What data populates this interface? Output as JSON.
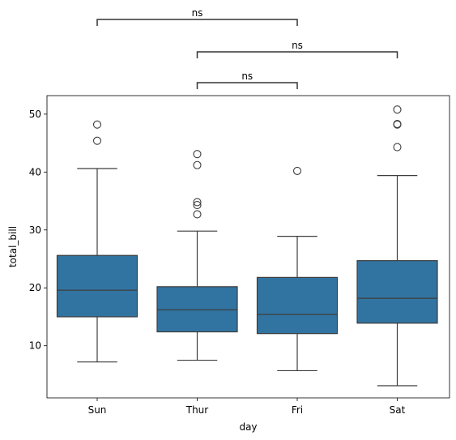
{
  "chart_data": {
    "type": "box",
    "title": "",
    "xlabel": "day",
    "ylabel": "total_bill",
    "categories": [
      "Sun",
      "Thur",
      "Fri",
      "Sat"
    ],
    "ylim": [
      1.0,
      53.2
    ],
    "yticks": [
      10,
      20,
      30,
      40,
      50
    ],
    "grid": false,
    "box_color": "#3274a1",
    "line_color": "#3d3d3d",
    "boxes": [
      {
        "category": "Sun",
        "whisker_low": 7.2,
        "q1": 15.0,
        "median": 19.6,
        "q3": 25.6,
        "whisker_high": 40.6,
        "outliers": [
          48.2,
          45.4
        ]
      },
      {
        "category": "Thur",
        "whisker_low": 7.5,
        "q1": 12.4,
        "median": 16.2,
        "q3": 20.2,
        "whisker_high": 29.8,
        "outliers": [
          43.1,
          41.2,
          34.8,
          34.3,
          32.7
        ]
      },
      {
        "category": "Fri",
        "whisker_low": 5.7,
        "q1": 12.1,
        "median": 15.4,
        "q3": 21.8,
        "whisker_high": 28.9,
        "outliers": [
          40.2
        ]
      },
      {
        "category": "Sat",
        "whisker_low": 3.1,
        "q1": 13.9,
        "median": 18.2,
        "q3": 24.7,
        "whisker_high": 39.4,
        "outliers": [
          50.8,
          48.3,
          48.2,
          44.3
        ]
      }
    ],
    "annotations": [
      {
        "from": "Sun",
        "to": "Fri",
        "label": "ns"
      },
      {
        "from": "Thur",
        "to": "Sat",
        "label": "ns"
      },
      {
        "from": "Thur",
        "to": "Fri",
        "label": "ns"
      }
    ]
  }
}
